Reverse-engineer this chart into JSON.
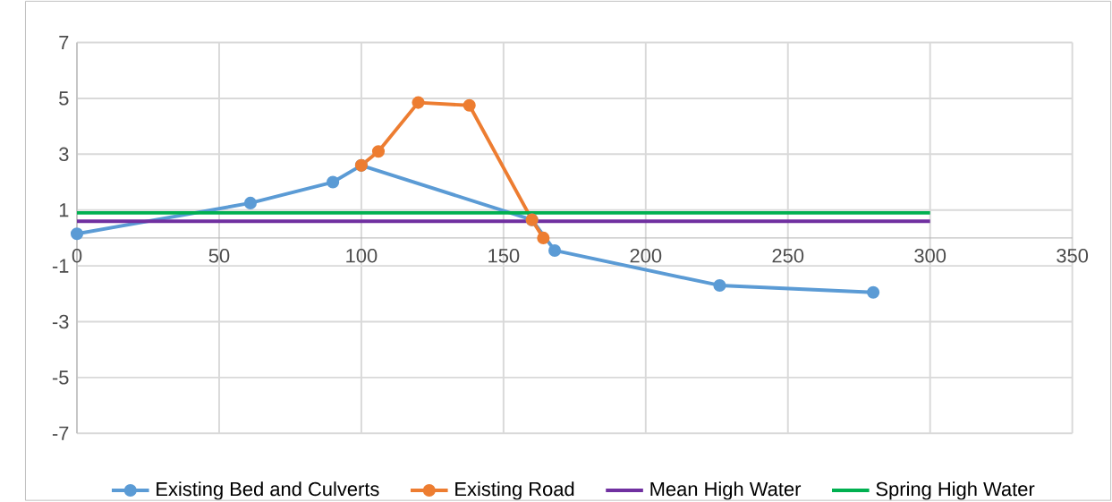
{
  "chart_data": {
    "type": "line",
    "x": [
      0,
      61,
      90,
      100,
      160,
      168,
      226,
      280
    ],
    "series": [
      {
        "name": "Existing Bed and Culverts",
        "color": "#5b9bd5",
        "values": [
          0.15,
          1.25,
          2.0,
          2.6,
          0.65,
          -0.45,
          -1.7,
          -1.95
        ],
        "marker": "circle"
      },
      {
        "name": "Existing Road",
        "color": "#ed7d31",
        "x": [
          100,
          106,
          120,
          138,
          160,
          164
        ],
        "values": [
          2.6,
          3.1,
          4.85,
          4.75,
          0.65,
          0.0
        ],
        "marker": "circle"
      },
      {
        "name": "Mean High Water",
        "color": "#7030a0",
        "x": [
          0,
          300
        ],
        "values": [
          0.6,
          0.6
        ],
        "marker": "none"
      },
      {
        "name": "Spring High Water",
        "color": "#00b050",
        "x": [
          0,
          300
        ],
        "values": [
          0.9,
          0.9
        ],
        "marker": "none"
      }
    ],
    "xlim": [
      0,
      350
    ],
    "ylim": [
      -7,
      7
    ],
    "xticks": [
      0,
      50,
      100,
      150,
      200,
      250,
      300,
      350
    ],
    "yticks": [
      -7,
      -5,
      -3,
      -1,
      1,
      3,
      5,
      7
    ],
    "grid": true,
    "legend": "bottom"
  }
}
